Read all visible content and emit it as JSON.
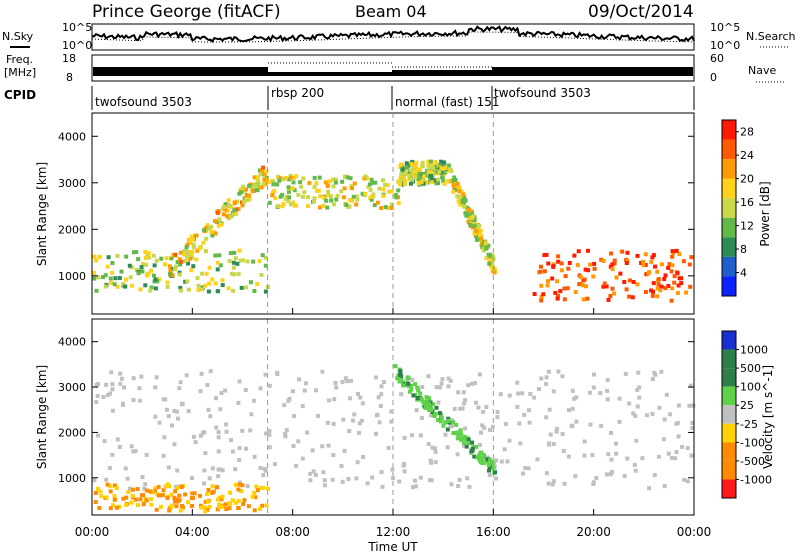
{
  "header": {
    "station": "Prince George (fitACF)",
    "beam": "Beam 04",
    "date": "09/Oct/2014"
  },
  "sky_panel": {
    "label": "N.Sky",
    "top_tick": "10^5",
    "bottom_tick": "10^0",
    "right_label": "N.Search"
  },
  "freq_panel": {
    "label_line1": "Freq.",
    "label_line2": "[MHz]",
    "left_ticks": [
      "18",
      "8"
    ],
    "right_ticks": [
      "60",
      "0"
    ],
    "right_label": "Nave"
  },
  "cpid": {
    "label": "CPID",
    "segments": [
      {
        "name": "twofsound 3503",
        "start_hour": 0,
        "end_hour": 7.0
      },
      {
        "name": "rbsp 200",
        "start_hour": 7.0,
        "end_hour": 12.0
      },
      {
        "name": "normal (fast) 151",
        "start_hour": 12.0,
        "end_hour": 16.0
      },
      {
        "name": "twofsound 3503",
        "start_hour": 16.0,
        "end_hour": 24.0
      }
    ]
  },
  "x_axis": {
    "label": "Time UT",
    "ticks": [
      "00:00",
      "04:00",
      "08:00",
      "12:00",
      "16:00",
      "20:00",
      "00:00"
    ]
  },
  "colors": {
    "power": [
      "#0b22ff",
      "#1f5fcc",
      "#2e8b57",
      "#63b84a",
      "#c8d84a",
      "#ffd21a",
      "#ff9a00",
      "#ff5a00",
      "#ff1a00"
    ],
    "velocity": {
      "toward_fast": "#1a2fd0",
      "toward_mid": "#2f7f4a",
      "toward_slow": "#5fd14a",
      "near_zero": "#c0c0c0",
      "away_slow": "#ffd200",
      "away_mid": "#ff8c00",
      "away_fast": "#ff1a1a"
    }
  },
  "chart_data": [
    {
      "type": "heatmap",
      "title": "Power",
      "xlabel": "Time UT",
      "ylabel": "Slant Range [km]",
      "xlim_hours": [
        0,
        24
      ],
      "ylim": [
        180,
        4500
      ],
      "yticks": [
        "1000",
        "2000",
        "3000",
        "4000"
      ],
      "colorbar": {
        "label": "Power [dB]",
        "ticks": [
          "4",
          "8",
          "12",
          "16",
          "20",
          "24",
          "28"
        ],
        "range": [
          0,
          30
        ]
      },
      "features": [
        {
          "name": "near-range echoes",
          "hours": [
            0,
            7
          ],
          "range_km": [
            700,
            1600
          ],
          "power_db": 14
        },
        {
          "name": "rising arc",
          "hours": [
            3,
            7
          ],
          "range_km": [
            1200,
            3300
          ],
          "power_db": 18
        },
        {
          "name": "arc top",
          "hours": [
            7,
            12.2
          ],
          "range_km": [
            2500,
            3200
          ],
          "power_db": 16
        },
        {
          "name": "peak",
          "hours": [
            12.2,
            14
          ],
          "range_km": [
            3000,
            3500
          ],
          "power_db": 14
        },
        {
          "name": "descending arc",
          "hours": [
            14,
            16
          ],
          "range_km": [
            1200,
            3400
          ],
          "power_db": 16
        },
        {
          "name": "strong near-range band",
          "hours": [
            17.5,
            24
          ],
          "range_km": [
            500,
            1600
          ],
          "power_db": 26
        }
      ]
    },
    {
      "type": "heatmap",
      "title": "Velocity",
      "xlabel": "Time UT",
      "ylabel": "Slant Range [km]",
      "xlim_hours": [
        0,
        24
      ],
      "ylim": [
        180,
        4500
      ],
      "yticks": [
        "1000",
        "2000",
        "3000",
        "4000"
      ],
      "colorbar": {
        "label": "Velocity [m s^-1]",
        "ticks": [
          "1000",
          "500",
          "100",
          "25",
          "-25",
          "-100",
          "-500",
          "-1000"
        ]
      },
      "features": [
        {
          "name": "ground scatter",
          "hours": [
            0,
            24
          ],
          "range_km": [
            800,
            3400
          ],
          "velocity_ms": 0
        },
        {
          "name": "early away flow",
          "hours": [
            0,
            7
          ],
          "range_km": [
            300,
            900
          ],
          "velocity_ms": -200
        },
        {
          "name": "toward flow",
          "hours": [
            12,
            16
          ],
          "range_km": [
            1200,
            3400
          ],
          "velocity_ms": 150
        }
      ]
    }
  ]
}
